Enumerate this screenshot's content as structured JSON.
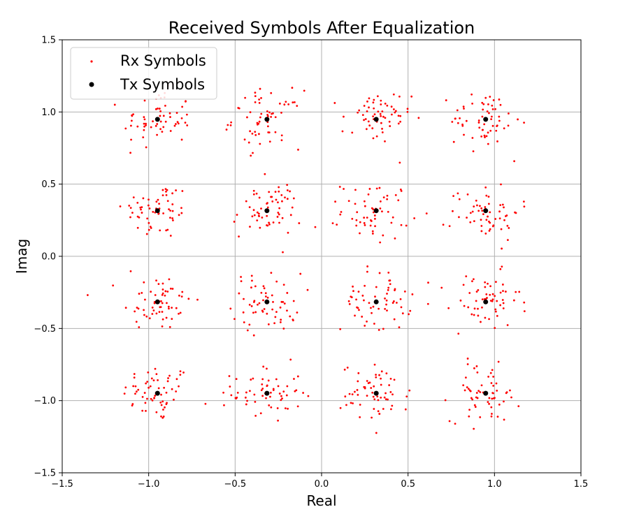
{
  "chart_data": {
    "type": "scatter",
    "title": "Received Symbols After Equalization",
    "xlabel": "Real",
    "ylabel": "Imag",
    "xlim": [
      -1.5,
      1.5
    ],
    "ylim": [
      -1.5,
      1.5
    ],
    "grid": true,
    "legend_position": "top-left",
    "x_ticks": [
      "−1.5",
      "−1.0",
      "−0.5",
      "0.0",
      "0.5",
      "1.0",
      "1.5"
    ],
    "y_ticks": [
      "−1.5",
      "−1.0",
      "−0.5",
      "0.0",
      "0.5",
      "1.0",
      "1.5"
    ],
    "series": [
      {
        "name": "Rx Symbols",
        "color": "#ff0000",
        "points_approximate": true,
        "cluster_centers_x": [
          -0.949,
          -0.316,
          0.316,
          0.949
        ],
        "cluster_centers_y": [
          -0.949,
          -0.316,
          0.316,
          0.949
        ],
        "cluster_spread": 0.1,
        "points_per_cluster": 60
      },
      {
        "name": "Tx Symbols",
        "color": "#000000",
        "x": [
          -0.949,
          -0.949,
          -0.949,
          -0.949,
          -0.316,
          -0.316,
          -0.316,
          -0.316,
          0.316,
          0.316,
          0.316,
          0.316,
          0.949,
          0.949,
          0.949,
          0.949
        ],
        "y": [
          0.949,
          0.316,
          -0.316,
          -0.949,
          0.949,
          0.316,
          -0.316,
          -0.949,
          0.949,
          0.316,
          -0.316,
          -0.949,
          0.949,
          0.316,
          -0.316,
          -0.949
        ]
      }
    ]
  }
}
